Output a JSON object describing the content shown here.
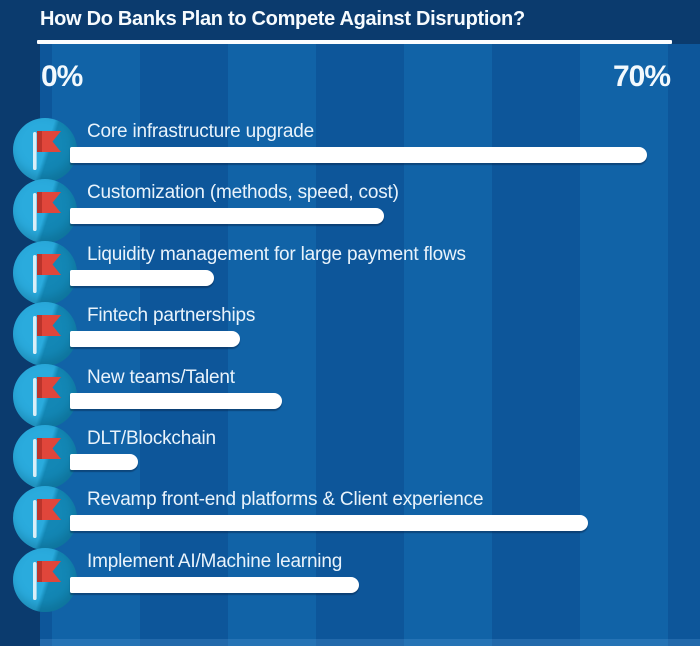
{
  "title": "How Do Banks Plan to Compete Against Disruption?",
  "axis": {
    "min_label": "0%",
    "max_label": "70%"
  },
  "chart_data": {
    "type": "bar",
    "orientation": "horizontal",
    "title": "How Do Banks Plan to Compete Against Disruption?",
    "categories": [
      "Core infrastructure upgrade",
      "Customization (methods, speed, cost)",
      "Liquidity management for large payment flows",
      "Fintech partnerships",
      "New teams/Talent",
      "DLT/Blockchain",
      "Revamp front-end platforms & Client experience",
      "Implement AI/Machine learning"
    ],
    "values": [
      68,
      37,
      17,
      20,
      25,
      8,
      61,
      34
    ],
    "unit": "%",
    "xlim": [
      0,
      70
    ],
    "xticklabels": [
      "0%",
      "70%"
    ],
    "grid": false,
    "legend": false,
    "bar_color": "#ffffff",
    "row_icon": "red-flag-in-circle"
  },
  "colors": {
    "header_navy": "#0b3b6e",
    "stripe_light": "#1163a7",
    "stripe_dark": "#0d569a",
    "bar": "#ffffff",
    "label_text": "#e9f3fb",
    "title_text": "#f7fbfe",
    "badge_cyan": "#2aabdd",
    "badge_teal": "#1387b5",
    "flag_red": "#e0463b"
  }
}
